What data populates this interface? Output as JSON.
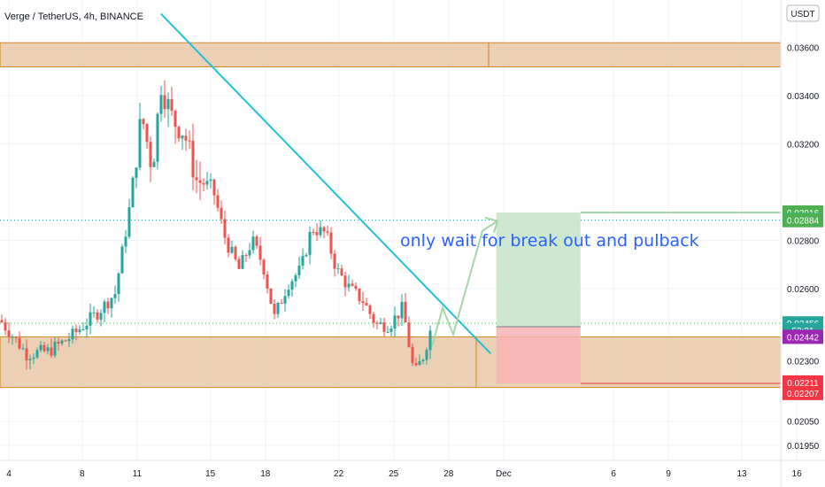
{
  "header": {
    "title": "Verge / TetherUS, 4h, BINANCE",
    "currency": "USDT"
  },
  "chart_data": {
    "type": "candlestick",
    "title": "Verge / TetherUS, 4h, BINANCE",
    "ylim": [
      0.0188,
      0.0379
    ],
    "y_ticks": [
      "0.03600",
      "0.03400",
      "0.03200",
      "0.02800",
      "0.02600",
      "0.02300",
      "0.02050",
      "0.01950"
    ],
    "x_ticks": [
      {
        "label": "4",
        "day": 4
      },
      {
        "label": "8",
        "day": 8
      },
      {
        "label": "11",
        "day": 11
      },
      {
        "label": "15",
        "day": 15
      },
      {
        "label": "18",
        "day": 18
      },
      {
        "label": "22",
        "day": 22
      },
      {
        "label": "25",
        "day": 25
      },
      {
        "label": "28",
        "day": 28
      },
      {
        "label": "Dec",
        "day": 31
      },
      {
        "label": "6",
        "day": 37
      },
      {
        "label": "9",
        "day": 40
      },
      {
        "label": "13",
        "day": 44
      },
      {
        "label": "16",
        "day": 47
      }
    ],
    "price_badges": [
      {
        "label": "0.02916",
        "price": 0.02916,
        "color": "#4caf50"
      },
      {
        "label": "0.02885",
        "price": 0.02885,
        "color": "#00bcd4"
      },
      {
        "label": "0.02884",
        "price": 0.02884,
        "color": "#4caf50"
      },
      {
        "label": "0.02456",
        "price": 0.02456,
        "color": "#26a69a"
      },
      {
        "label": "53:21",
        "price": 0.02428,
        "color": "#26a69a"
      },
      {
        "label": "0.02442",
        "price": 0.024,
        "color": "#9c27b0"
      },
      {
        "label": "0.02211",
        "price": 0.02211,
        "color": "#f23645"
      },
      {
        "label": "0.02207",
        "price": 0.02167,
        "color": "#f23645"
      }
    ],
    "annotation": "only wait for break out and pulback",
    "zones": [
      {
        "name": "resistance",
        "y1": 0.0362,
        "y2": 0.0352,
        "color": "#e8c8a8"
      },
      {
        "name": "support",
        "y1": 0.024,
        "y2": 0.0219,
        "color": "#e8c8a8"
      }
    ],
    "position": {
      "entry": 0.02442,
      "target": 0.02916,
      "stop": 0.02207,
      "start_day": 30.6,
      "end_day": 35.2
    },
    "trendline": {
      "x1": 12.3,
      "y1": 0.0374,
      "x2": 30.3,
      "y2": 0.0233
    },
    "dotted_levels": [
      {
        "price": 0.02884,
        "color": "#2aa5a0"
      },
      {
        "price": 0.02456,
        "color": "#4caf50"
      }
    ],
    "colors": {
      "up": "#26a69a",
      "down": "#ef5350",
      "zone": "#e8c8a8",
      "zone_border": "#d08a20",
      "trend": "#22c1d6",
      "target": "#c8e6c9",
      "stop": "#f8b4b4"
    }
  }
}
